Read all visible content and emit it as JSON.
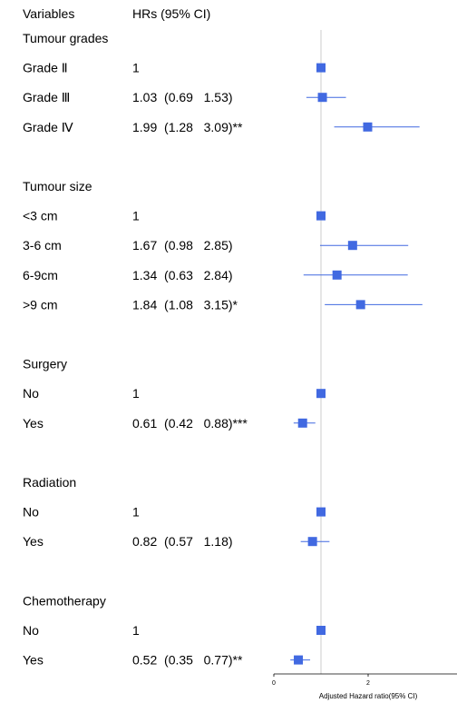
{
  "chart_data": {
    "type": "forest",
    "header": {
      "variables": "Variables",
      "hr": "HRs (95% CI)"
    },
    "xlabel": "Adjusted Hazard ratio(95% CI)",
    "x_ticks": [
      0,
      2
    ],
    "xlim": [
      0,
      4
    ],
    "reference_line": 1,
    "marker_color": "#4169e1",
    "groups": [
      {
        "title": "Tumour grades",
        "rows": [
          {
            "label": "Grade Ⅱ",
            "text": "1",
            "hr": 1.0,
            "lo": null,
            "hi": null
          },
          {
            "label": "Grade Ⅲ",
            "text": "1.03  (0.69   1.53)",
            "hr": 1.03,
            "lo": 0.69,
            "hi": 1.53
          },
          {
            "label": "Grade Ⅳ",
            "text": "1.99  (1.28   3.09)**",
            "hr": 1.99,
            "lo": 1.28,
            "hi": 3.09
          }
        ]
      },
      {
        "title": "Tumour size",
        "rows": [
          {
            "label": "<3 cm",
            "text": "1",
            "hr": 1.0,
            "lo": null,
            "hi": null
          },
          {
            "label": "3-6 cm",
            "text": "1.67  (0.98   2.85)",
            "hr": 1.67,
            "lo": 0.98,
            "hi": 2.85
          },
          {
            "label": "6-9cm",
            "text": "1.34  (0.63   2.84)",
            "hr": 1.34,
            "lo": 0.63,
            "hi": 2.84
          },
          {
            "label": ">9 cm",
            "text": "1.84  (1.08   3.15)*",
            "hr": 1.84,
            "lo": 1.08,
            "hi": 3.15
          }
        ]
      },
      {
        "title": "Surgery",
        "rows": [
          {
            "label": "No",
            "text": "1",
            "hr": 1.0,
            "lo": null,
            "hi": null
          },
          {
            "label": "Yes",
            "text": "0.61  (0.42   0.88)***",
            "hr": 0.61,
            "lo": 0.42,
            "hi": 0.88
          }
        ]
      },
      {
        "title": "Radiation",
        "rows": [
          {
            "label": "No",
            "text": "1",
            "hr": 1.0,
            "lo": null,
            "hi": null
          },
          {
            "label": "Yes",
            "text": "0.82  (0.57   1.18)",
            "hr": 0.82,
            "lo": 0.57,
            "hi": 1.18
          }
        ]
      },
      {
        "title": "Chemotherapy",
        "rows": [
          {
            "label": "No",
            "text": "1",
            "hr": 1.0,
            "lo": null,
            "hi": null
          },
          {
            "label": "Yes",
            "text": "0.52  (0.35   0.77)**",
            "hr": 0.52,
            "lo": 0.35,
            "hi": 0.77
          }
        ]
      }
    ]
  }
}
